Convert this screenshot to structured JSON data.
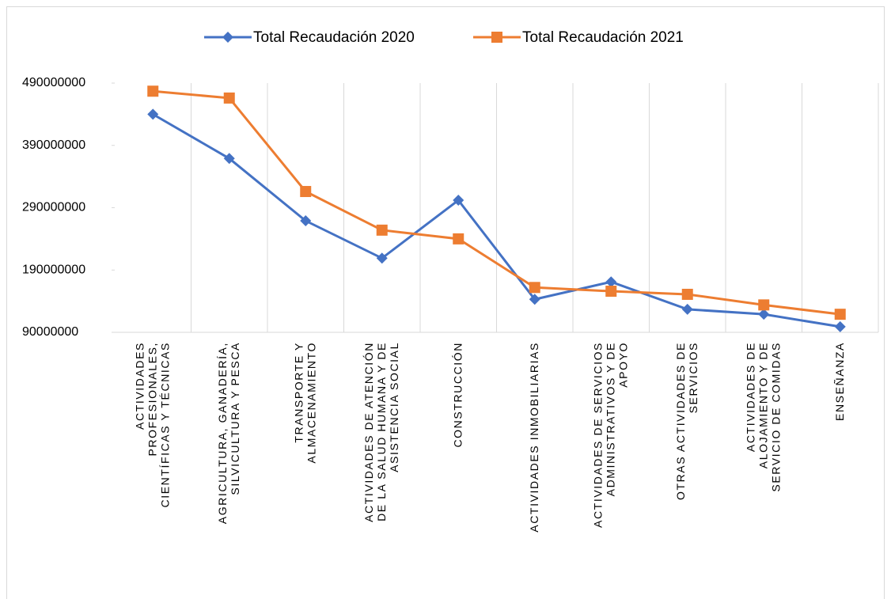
{
  "chart_data": {
    "type": "line",
    "categories": [
      "ACTIVIDADES\nPROFESIONALES,\nCIENTÍFICAS Y TÉCNICAS",
      "AGRICULTURA, GANADERÍA,\nSILVICULTURA Y PESCA",
      "TRANSPORTE Y\nALMACENAMIENTO",
      "ACTIVIDADES DE ATENCIÓN\nDE LA SALUD HUMANA Y DE\nASISTENCIA SOCIAL",
      "CONSTRUCCIÓN",
      "ACTIVIDADES INMOBILIARIAS",
      "ACTIVIDADES DE SERVICIOS\nADMINISTRATIVOS Y DE\nAPOYO",
      "OTRAS ACTIVIDADES DE\nSERVICIOS",
      "ACTIVIDADES DE\nALOJAMIENTO Y DE\nSERVICIO DE COMIDAS",
      "ENSEÑANZA"
    ],
    "series": [
      {
        "name": "Total Recaudación 2020",
        "color": "#4472c4",
        "marker": "diamond",
        "values": [
          440000000,
          369000000,
          269000000,
          209000000,
          302000000,
          143000000,
          171000000,
          127000000,
          119000000,
          99000000
        ]
      },
      {
        "name": "Total Recaudación 2021",
        "color": "#ed7d31",
        "marker": "square",
        "values": [
          477000000,
          466000000,
          316000000,
          254000000,
          240000000,
          162000000,
          156000000,
          151000000,
          134000000,
          119000000
        ]
      }
    ],
    "ylim": [
      90000000,
      490000000
    ],
    "yticks": [
      90000000,
      190000000,
      290000000,
      390000000,
      490000000
    ],
    "legend": "top"
  }
}
